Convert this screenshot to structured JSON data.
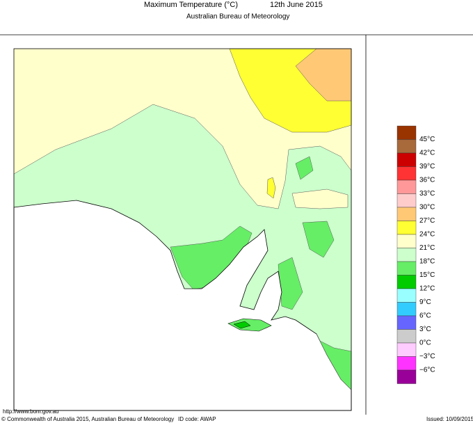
{
  "header": {
    "title": "Maximum Temperature (°C)",
    "date": "12th June 2015",
    "subtitle": "Australian Bureau of Meteorology"
  },
  "legend": {
    "colors": [
      "#993300",
      "#a8693b",
      "#cc0000",
      "#ff3333",
      "#ff9999",
      "#ffcccc",
      "#ffc875",
      "#ffff33",
      "#ffffcc",
      "#ccffcc",
      "#66ee66",
      "#00cc00",
      "#99ffff",
      "#33ccff",
      "#6666ff",
      "#cccccc",
      "#ffccff",
      "#ff33ff",
      "#990099"
    ],
    "labels": [
      "45°C",
      "42°C",
      "39°C",
      "36°C",
      "33°C",
      "30°C",
      "27°C",
      "24°C",
      "21°C",
      "18°C",
      "15°C",
      "12°C",
      "9°C",
      "6°C",
      "3°C",
      "0°C",
      "−3°C",
      "−6°C"
    ]
  },
  "footer": {
    "url": "http://www.bom.gov.au",
    "copyright": "© Commonwealth of Australia 2015, Australian Bureau of Meteorology",
    "id_code": "ID code: AWAP",
    "issued": "Issued: 10/09/2015"
  }
}
